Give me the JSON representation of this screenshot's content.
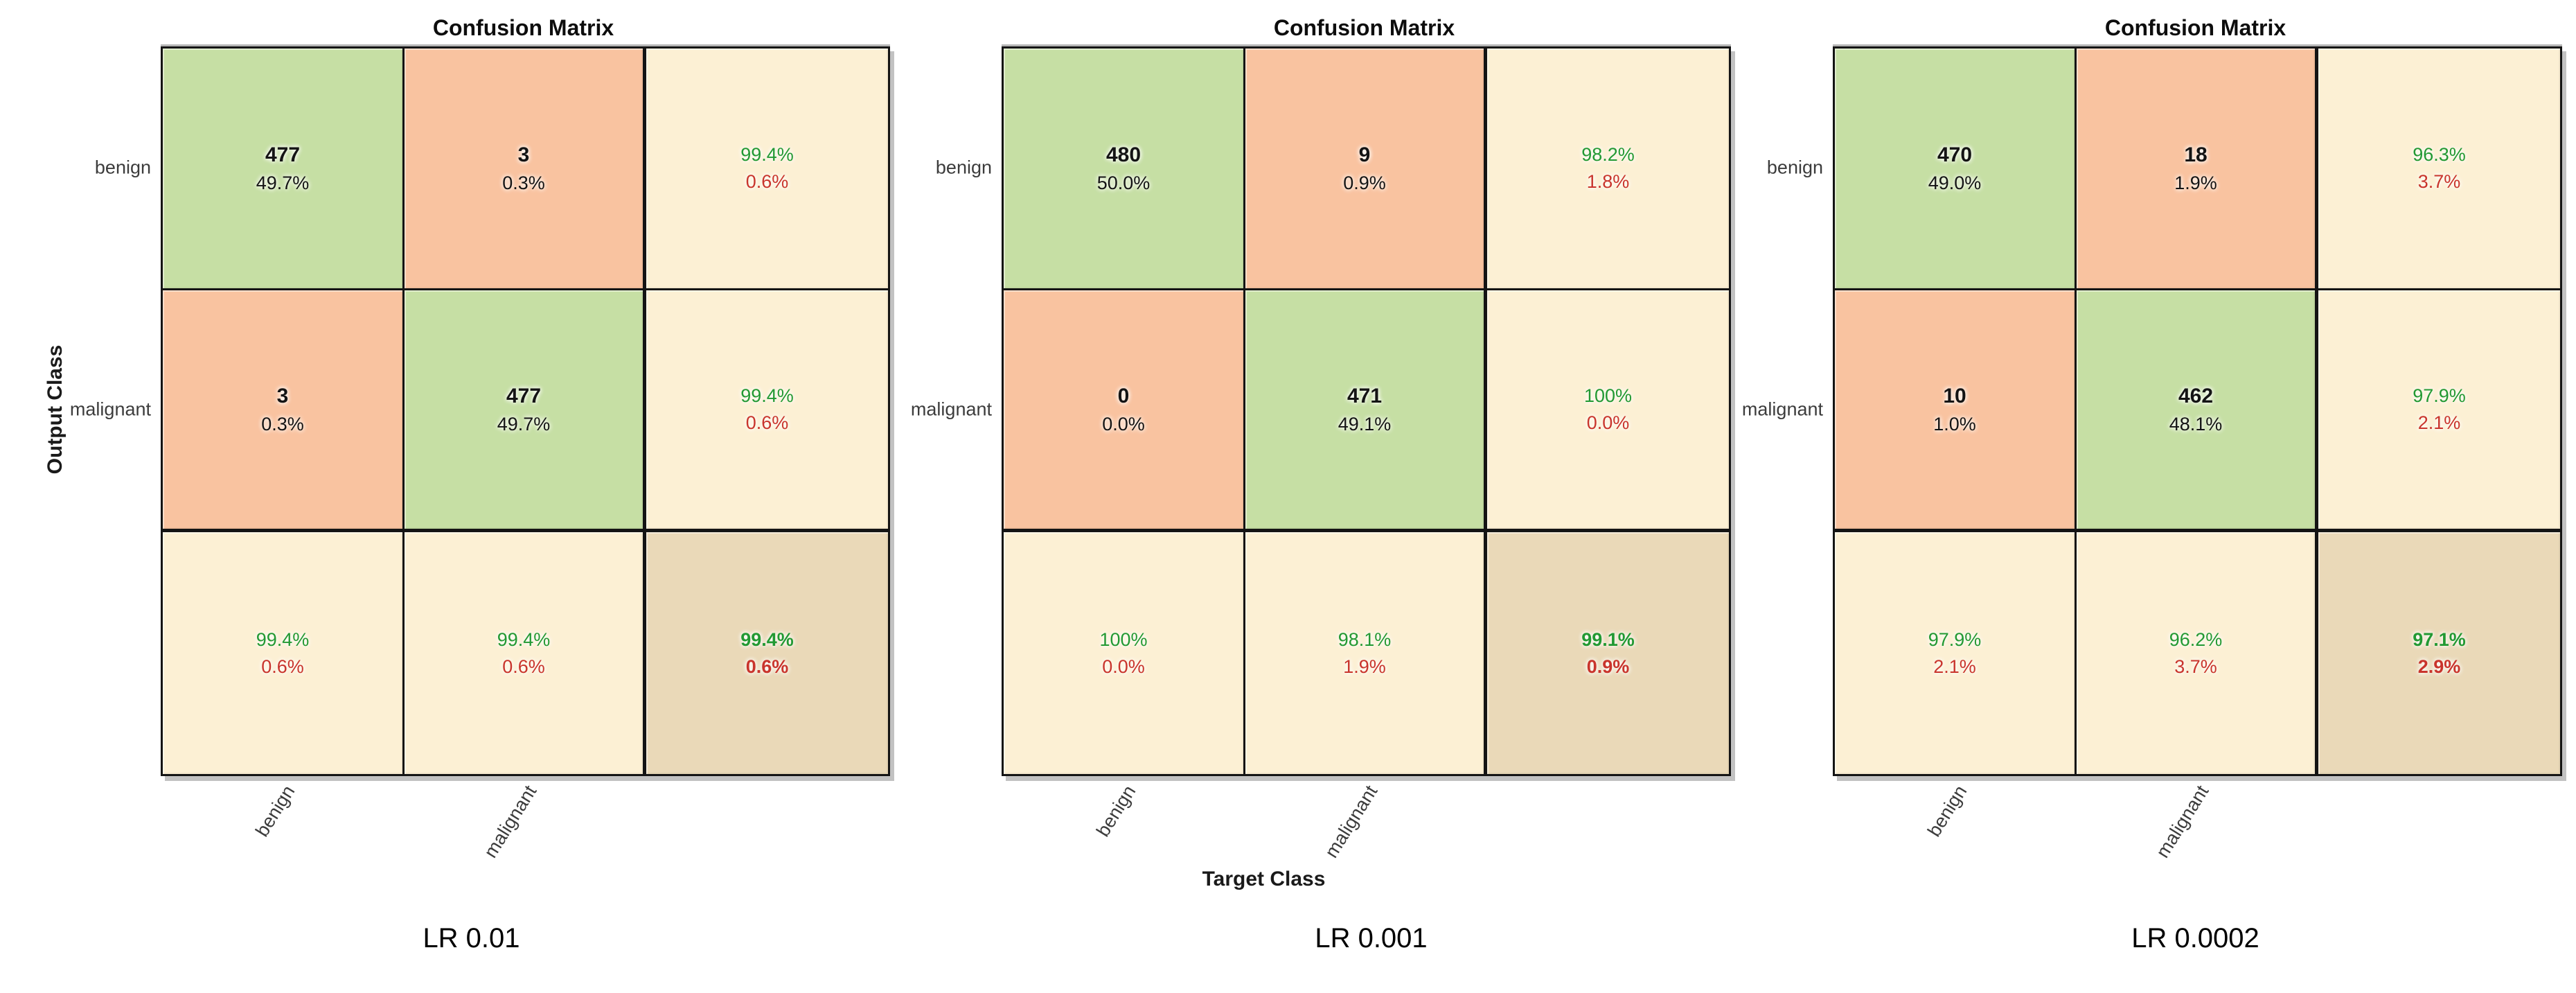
{
  "figure": {
    "panel_title": "Confusion Matrix",
    "y_axis_label": "Output Class",
    "x_axis_label": "Target Class",
    "classes": [
      "benign",
      "malignant"
    ]
  },
  "colors": {
    "correct_cell": "#c6dfa4",
    "incorrect_cell": "#f9c3a0",
    "summary_cell": "#fcf0d4",
    "total_cell": "#ead9b8",
    "good_text": "#229933",
    "bad_text": "#c9342c",
    "grid_line": "#141414",
    "tick_text": "#3c3c3c"
  },
  "chart_data": [
    {
      "type": "heatmap",
      "title": "Confusion Matrix",
      "caption": "LR 0.01",
      "classes": [
        "benign",
        "malignant"
      ],
      "matrix": [
        [
          477,
          3
        ],
        [
          3,
          477
        ]
      ],
      "row_summary_pct": [
        [
          "99.4%",
          "0.6%"
        ],
        [
          "99.4%",
          "0.6%"
        ]
      ],
      "col_summary_pct": [
        [
          "99.4%",
          "0.6%"
        ],
        [
          "99.4%",
          "0.6%"
        ]
      ],
      "overall_pct": [
        "99.4%",
        "0.6%"
      ],
      "cells": [
        [
          {
            "line1": "477",
            "line2": "49.7%"
          },
          {
            "line1": "3",
            "line2": "0.3%"
          },
          {
            "line1": "99.4%",
            "line2": "0.6%"
          }
        ],
        [
          {
            "line1": "3",
            "line2": "0.3%"
          },
          {
            "line1": "477",
            "line2": "49.7%"
          },
          {
            "line1": "99.4%",
            "line2": "0.6%"
          }
        ],
        [
          {
            "line1": "99.4%",
            "line2": "0.6%"
          },
          {
            "line1": "99.4%",
            "line2": "0.6%"
          },
          {
            "line1": "99.4%",
            "line2": "0.6%"
          }
        ]
      ]
    },
    {
      "type": "heatmap",
      "title": "Confusion Matrix",
      "caption": "LR 0.001",
      "classes": [
        "benign",
        "malignant"
      ],
      "matrix": [
        [
          480,
          9
        ],
        [
          0,
          471
        ]
      ],
      "row_summary_pct": [
        [
          "98.2%",
          "1.8%"
        ],
        [
          "100%",
          "0.0%"
        ]
      ],
      "col_summary_pct": [
        [
          "100%",
          "0.0%"
        ],
        [
          "98.1%",
          "1.9%"
        ]
      ],
      "overall_pct": [
        "99.1%",
        "0.9%"
      ],
      "cells": [
        [
          {
            "line1": "480",
            "line2": "50.0%"
          },
          {
            "line1": "9",
            "line2": "0.9%"
          },
          {
            "line1": "98.2%",
            "line2": "1.8%"
          }
        ],
        [
          {
            "line1": "0",
            "line2": "0.0%"
          },
          {
            "line1": "471",
            "line2": "49.1%"
          },
          {
            "line1": "100%",
            "line2": "0.0%"
          }
        ],
        [
          {
            "line1": "100%",
            "line2": "0.0%"
          },
          {
            "line1": "98.1%",
            "line2": "1.9%"
          },
          {
            "line1": "99.1%",
            "line2": "0.9%"
          }
        ]
      ]
    },
    {
      "type": "heatmap",
      "title": "Confusion Matrix",
      "caption": "LR 0.0002",
      "classes": [
        "benign",
        "malignant"
      ],
      "matrix": [
        [
          470,
          18
        ],
        [
          10,
          462
        ]
      ],
      "row_summary_pct": [
        [
          "96.3%",
          "3.7%"
        ],
        [
          "97.9%",
          "2.1%"
        ]
      ],
      "col_summary_pct": [
        [
          "97.9%",
          "2.1%"
        ],
        [
          "96.2%",
          "3.7%"
        ]
      ],
      "overall_pct": [
        "97.1%",
        "2.9%"
      ],
      "cells": [
        [
          {
            "line1": "470",
            "line2": "49.0%"
          },
          {
            "line1": "18",
            "line2": "1.9%"
          },
          {
            "line1": "96.3%",
            "line2": "3.7%"
          }
        ],
        [
          {
            "line1": "10",
            "line2": "1.0%"
          },
          {
            "line1": "462",
            "line2": "48.1%"
          },
          {
            "line1": "97.9%",
            "line2": "2.1%"
          }
        ],
        [
          {
            "line1": "97.9%",
            "line2": "2.1%"
          },
          {
            "line1": "96.2%",
            "line2": "3.7%"
          },
          {
            "line1": "97.1%",
            "line2": "2.9%"
          }
        ]
      ]
    }
  ]
}
